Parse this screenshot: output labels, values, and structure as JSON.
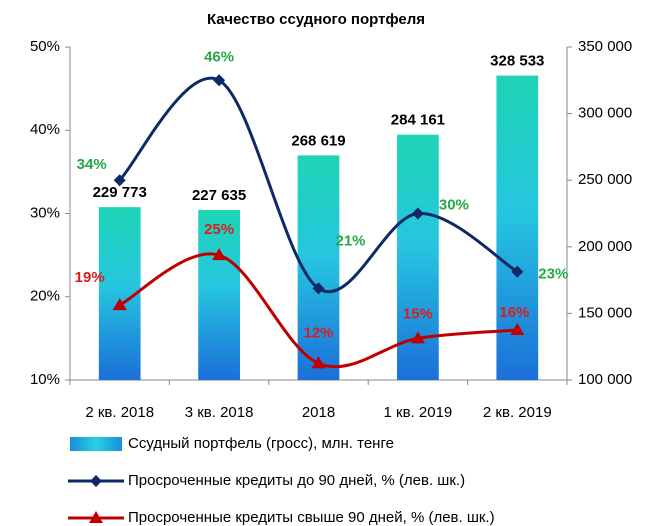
{
  "chart_data": {
    "type": "combo",
    "title": "Качество ссудного портфеля",
    "categories": [
      "2 кв. 2018",
      "3 кв. 2018",
      "2018",
      "1 кв. 2019",
      "2 кв. 2019"
    ],
    "ylim": [
      10,
      50
    ],
    "yticks": [
      {
        "value": 10,
        "label": "10%"
      },
      {
        "value": 20,
        "label": "20%"
      },
      {
        "value": 30,
        "label": "30%"
      },
      {
        "value": 40,
        "label": "40%"
      },
      {
        "value": 50,
        "label": "50%"
      }
    ],
    "y2lim": [
      100000,
      350000
    ],
    "y2ticks": [
      {
        "value": 100000,
        "label": "100 000"
      },
      {
        "value": 150000,
        "label": "150 000"
      },
      {
        "value": 200000,
        "label": "200 000"
      },
      {
        "value": 250000,
        "label": "250 000"
      },
      {
        "value": 300000,
        "label": "300 000"
      },
      {
        "value": 350000,
        "label": "350 000"
      }
    ],
    "series": [
      {
        "name": "Ссудный портфель (гросс), млн. тенге",
        "type": "bar",
        "axis": "y2",
        "color": "#1a78d6",
        "values": [
          229773,
          227635,
          268619,
          284161,
          328533
        ],
        "value_labels": [
          "229 773",
          "227 635",
          "268 619",
          "284 161",
          "328 533"
        ]
      },
      {
        "name": "Просроченные кредиты до 90 дней, % (лев. шк.)",
        "type": "line",
        "color": "#0e2a66",
        "marker": "diamond",
        "label_color": "#22a845",
        "values": [
          34,
          46,
          21,
          30,
          23
        ],
        "value_labels": [
          "34%",
          "46%",
          "21%",
          "30%",
          "23%"
        ]
      },
      {
        "name": "Просроченные кредиты свыше 90 дней, % (лев. шк.)",
        "type": "line",
        "color": "#c00000",
        "marker": "triangle",
        "label_color": "#d42020",
        "values": [
          19,
          25,
          12,
          15,
          16
        ],
        "value_labels": [
          "19%",
          "25%",
          "12%",
          "15%",
          "16%"
        ]
      }
    ]
  }
}
